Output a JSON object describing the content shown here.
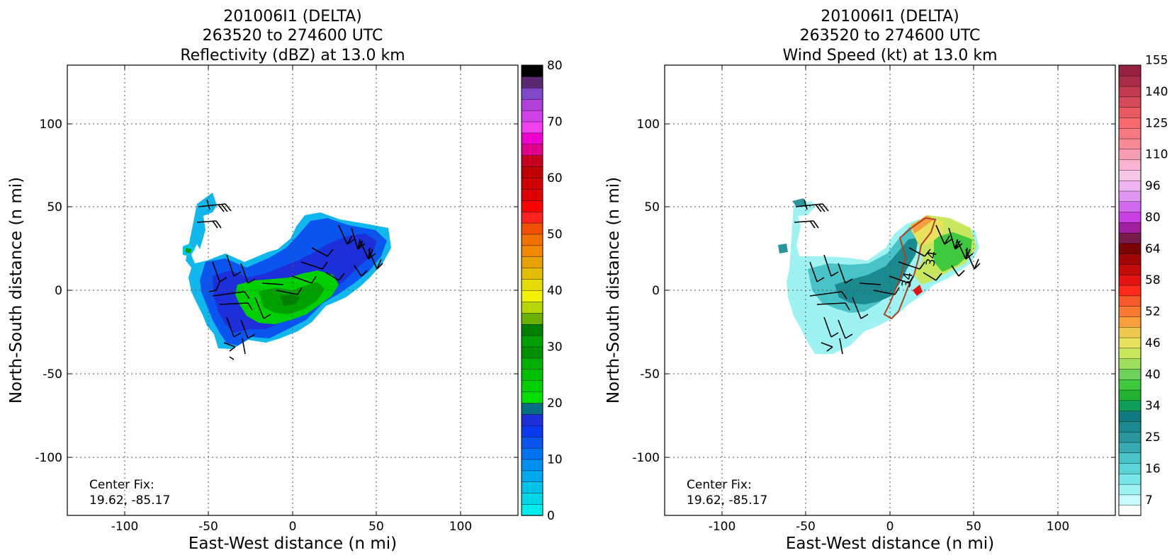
{
  "figure": {
    "panels": [
      {
        "title_lines": [
          "201006I1 (DELTA)",
          "263520 to 274600 UTC",
          "Reflectivity (dBZ) at 13.0 km"
        ],
        "xlabel": "East-West distance (n mi)",
        "ylabel": "North-South distance (n mi)",
        "annotation_lines": [
          "Center Fix:",
          "19.62, -85.17"
        ]
      },
      {
        "title_lines": [
          "201006I1 (DELTA)",
          "263520 to 274600 UTC",
          "Wind Speed (kt) at 13.0 km"
        ],
        "xlabel": "East-West distance (n mi)",
        "ylabel": "North-South distance (n mi)",
        "annotation_lines": [
          "Center Fix:",
          "19.62, -85.17"
        ]
      }
    ]
  },
  "chart_data": [
    {
      "type": "heatmap",
      "title": "201006I1 (DELTA) 263520 to 274600 UTC Reflectivity (dBZ) at 13.0 km",
      "xlabel": "East-West distance (n mi)",
      "ylabel": "North-South distance (n mi)",
      "xlim": [
        -135,
        135
      ],
      "ylim": [
        -135,
        135
      ],
      "xticks": [
        -100,
        -50,
        0,
        50,
        100
      ],
      "yticks": [
        -100,
        -50,
        0,
        50,
        100
      ],
      "grid": true,
      "colorbar": {
        "min": 0,
        "max": 80,
        "ticks": [
          0,
          10,
          20,
          30,
          40,
          50,
          60,
          70,
          80
        ],
        "colors": [
          "#00eded",
          "#00d8e8",
          "#00c3ea",
          "#00a8f0",
          "#0090f0",
          "#0074f0",
          "#0a55f0",
          "#0a3aef",
          "#1c2fd9",
          "#056e84",
          "#00e000",
          "#00d000",
          "#00c000",
          "#00b000",
          "#009000",
          "#00a000",
          "#007f00",
          "#6bb100",
          "#b8d700",
          "#f3f300",
          "#e7dc00",
          "#e4bc00",
          "#e8a200",
          "#f08800",
          "#f07000",
          "#f05000",
          "#ff2020",
          "#ff0000",
          "#e00000",
          "#d00000",
          "#c00000",
          "#c80020",
          "#e0008a",
          "#f000d0",
          "#f040f0",
          "#d040e8",
          "#b040d8",
          "#8048c8",
          "#5a2870",
          "#000000"
        ]
      },
      "annotation": "Center Fix: 19.62, -85.17",
      "center_fix": [
        19.62,
        -85.17
      ]
    },
    {
      "type": "heatmap",
      "title": "201006I1 (DELTA) 263520 to 274600 UTC Wind Speed (kt) at 13.0 km",
      "xlabel": "East-West distance (n mi)",
      "ylabel": "North-South distance (n mi)",
      "xlim": [
        -135,
        135
      ],
      "ylim": [
        -135,
        135
      ],
      "xticks": [
        -100,
        -50,
        0,
        50,
        100
      ],
      "yticks": [
        -100,
        -50,
        0,
        50,
        100
      ],
      "grid": true,
      "colorbar": {
        "tick_labels": [
          "7",
          "16",
          "25",
          "34",
          "40",
          "46",
          "52",
          "58",
          "64",
          "80",
          "96",
          "110",
          "125",
          "140",
          "155"
        ],
        "colors": [
          "#ffffff",
          "#c8fbfb",
          "#9ef2f2",
          "#78e6e6",
          "#5ad4d6",
          "#48c4c8",
          "#38aab4",
          "#2a969c",
          "#1a8a8e",
          "#107a80",
          "#0e9e5a",
          "#22b232",
          "#3ec93e",
          "#6ed25a",
          "#9edd5e",
          "#c8e65e",
          "#e8e25e",
          "#f0c850",
          "#f6a040",
          "#f67a32",
          "#f45a2a",
          "#ff2a1a",
          "#e21414",
          "#c20c0c",
          "#a00808",
          "#7a0404",
          "#7a1a4a",
          "#a020a0",
          "#c840e0",
          "#d26af0",
          "#e096f0",
          "#eeb6f0",
          "#f6c8e8",
          "#f8b4d0",
          "#f89eb4",
          "#f88a96",
          "#f67880",
          "#f46a6e",
          "#e85a62",
          "#d44a58",
          "#c03a50",
          "#a82c48",
          "#962040"
        ]
      },
      "contour_labels": [
        "34",
        "34"
      ],
      "annotation": "Center Fix: 19.62, -85.17",
      "center_fix": [
        19.62,
        -85.17
      ]
    }
  ]
}
